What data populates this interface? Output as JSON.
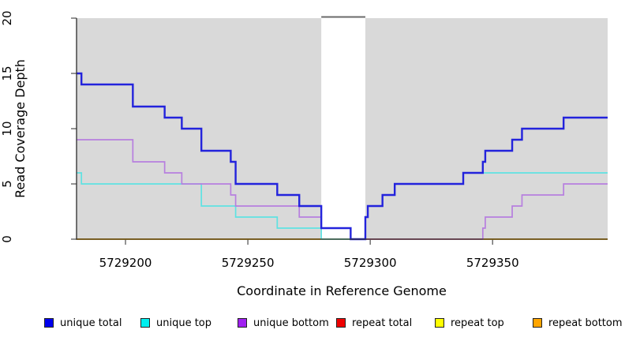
{
  "chart_data": {
    "type": "step-line",
    "title": "",
    "xlabel": "Coordinate in Reference Genome",
    "ylabel": "Read Coverage Depth",
    "xlim": [
      5729180,
      5729397
    ],
    "ylim": [
      0,
      20
    ],
    "x_ticks": [
      5729200,
      5729250,
      5729300,
      5729350
    ],
    "y_ticks": [
      0,
      5,
      10,
      15,
      20
    ],
    "grid": false,
    "plot_bg": "#d9d9d9",
    "gap_region": {
      "start": 5729280,
      "end": 5729298,
      "fill": "#ffffff",
      "top_border": "#6a6a6a"
    },
    "legend_position": "bottom",
    "draw_order": [
      4,
      5,
      1,
      2,
      3,
      0
    ],
    "series": [
      {
        "name": "unique total",
        "line_color": "#2323dc",
        "legend_color": "#0000ee",
        "line_width": 2.4,
        "steps": [
          [
            5729180,
            15
          ],
          [
            5729182,
            14
          ],
          [
            5729203,
            12
          ],
          [
            5729216,
            11
          ],
          [
            5729223,
            10
          ],
          [
            5729231,
            8
          ],
          [
            5729243,
            7
          ],
          [
            5729245,
            5
          ],
          [
            5729262,
            4
          ],
          [
            5729271,
            3
          ],
          [
            5729280,
            1
          ],
          [
            5729292,
            0
          ],
          [
            5729298,
            2
          ],
          [
            5729299,
            3
          ],
          [
            5729305,
            4
          ],
          [
            5729310,
            5
          ],
          [
            5729338,
            6
          ],
          [
            5729346,
            7
          ],
          [
            5729347,
            8
          ],
          [
            5729358,
            9
          ],
          [
            5729362,
            10
          ],
          [
            5729379,
            11
          ],
          [
            5729397,
            11
          ]
        ]
      },
      {
        "name": "unique top",
        "line_color": "#5fe2e2",
        "legend_color": "#00eeee",
        "line_width": 1.7,
        "steps": [
          [
            5729180,
            6
          ],
          [
            5729182,
            5
          ],
          [
            5729231,
            3
          ],
          [
            5729245,
            2
          ],
          [
            5729262,
            1
          ],
          [
            5729280,
            0
          ],
          [
            5729298,
            2
          ],
          [
            5729299,
            3
          ],
          [
            5729305,
            4
          ],
          [
            5729310,
            5
          ],
          [
            5729338,
            6
          ],
          [
            5729397,
            6
          ]
        ]
      },
      {
        "name": "unique bottom",
        "line_color": "#b77fdf",
        "legend_color": "#a020f0",
        "line_width": 1.7,
        "steps": [
          [
            5729180,
            9
          ],
          [
            5729203,
            7
          ],
          [
            5729216,
            6
          ],
          [
            5729223,
            5
          ],
          [
            5729243,
            4
          ],
          [
            5729245,
            3
          ],
          [
            5729271,
            2
          ],
          [
            5729280,
            1
          ],
          [
            5729292,
            0
          ],
          [
            5729346,
            1
          ],
          [
            5729347,
            2
          ],
          [
            5729358,
            3
          ],
          [
            5729362,
            4
          ],
          [
            5729379,
            5
          ],
          [
            5729397,
            5
          ]
        ]
      },
      {
        "name": "repeat total",
        "line_color": "#d45e7e",
        "legend_color": "#ee0000",
        "line_width": 1.5,
        "steps": [
          [
            5729298,
            0
          ],
          [
            5729346,
            0
          ]
        ]
      },
      {
        "name": "repeat top",
        "line_color": "#ffff00",
        "legend_color": "#ffff00",
        "line_width": 1.4,
        "steps": [
          [
            5729180,
            0
          ],
          [
            5729397,
            0
          ]
        ]
      },
      {
        "name": "repeat bottom",
        "line_color": "#ffa500",
        "legend_color": "#ffa500",
        "line_width": 1.8,
        "steps": [
          [
            5729180,
            0
          ],
          [
            5729397,
            0
          ]
        ]
      }
    ]
  }
}
